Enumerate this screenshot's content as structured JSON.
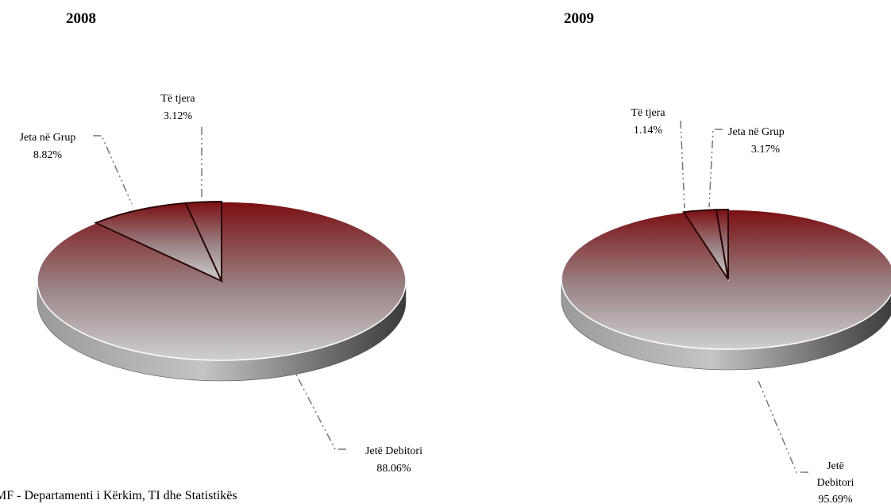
{
  "chart_data": [
    {
      "type": "pie",
      "title": "2008",
      "slices": [
        {
          "name": "Jetë Debitori",
          "value": 88.06,
          "label": "88.06%"
        },
        {
          "name": "Jeta në Grup",
          "value": 8.82,
          "label": "8.82%"
        },
        {
          "name": "Të tjera",
          "value": 3.12,
          "label": "3.12%"
        }
      ]
    },
    {
      "type": "pie",
      "title": "2009",
      "slices": [
        {
          "name": "Jetë Debitori",
          "value": 95.69,
          "label": "95.69%"
        },
        {
          "name": "Jeta në Grup",
          "value": 3.17,
          "label": "3.17%"
        },
        {
          "name": "Të tjera",
          "value": 1.14,
          "label": "1.14%"
        }
      ]
    }
  ],
  "source": "MF - Departamenti i Kërkim, TI dhe Statistikës",
  "colors": {
    "slice_top": "#7a0f12",
    "slice_bottom": "#c8c8c8",
    "side_light": "#b0b0b0",
    "side_dark": "#3c3c3c",
    "leader": "#777777"
  }
}
